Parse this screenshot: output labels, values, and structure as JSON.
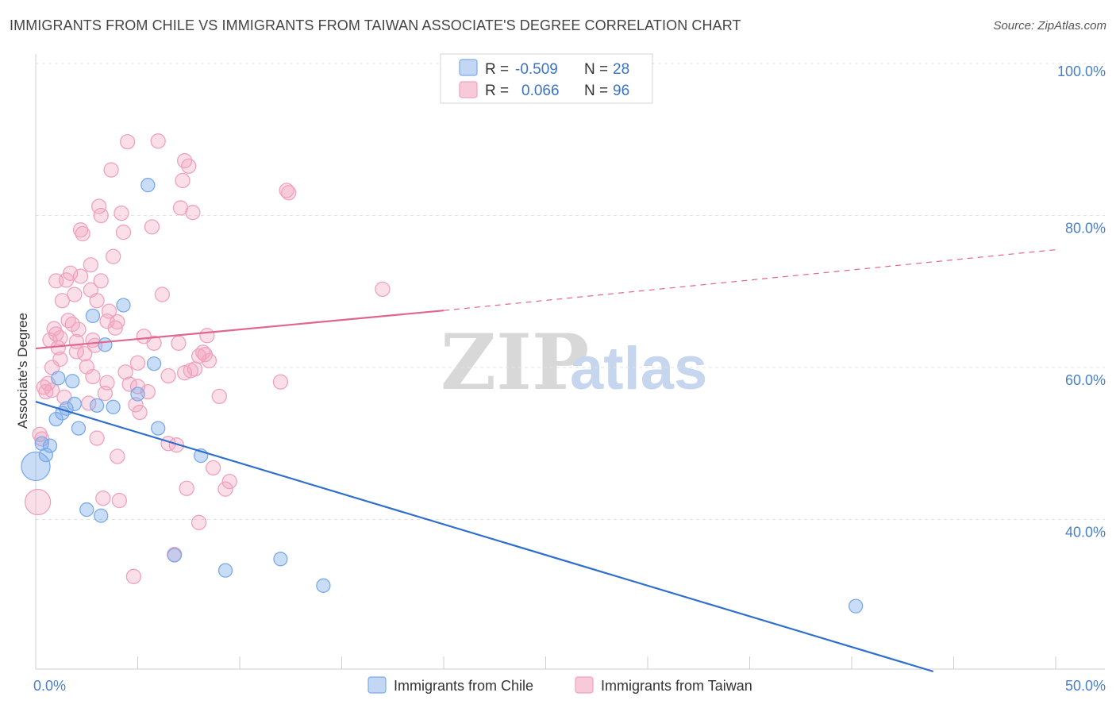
{
  "title": "IMMIGRANTS FROM CHILE VS IMMIGRANTS FROM TAIWAN ASSOCIATE'S DEGREE CORRELATION CHART",
  "source": "Source: ZipAtlas.com",
  "watermark": {
    "zip": "ZIP",
    "atlas": "atlas"
  },
  "colors": {
    "chile": "#7aaaeb",
    "chile_line": "#2f6fcc",
    "taiwan": "#f0a2bd",
    "taiwan_line": "#e0668f",
    "grid": "#e3e3e3",
    "tick_label": "#4a7fc8"
  },
  "legend": {
    "rows": [
      {
        "r_label": "R =",
        "r_value": "-0.509",
        "n_label": "N =",
        "n_value": "28"
      },
      {
        "r_label": "R =",
        "r_value": "0.066",
        "n_label": "N =",
        "n_value": "96"
      }
    ]
  },
  "bottom_legend": [
    "Immigrants from Chile",
    "Immigrants from Taiwan"
  ],
  "chart_data": {
    "type": "scatter",
    "title": "IMMIGRANTS FROM CHILE VS IMMIGRANTS FROM TAIWAN ASSOCIATE'S DEGREE CORRELATION CHART",
    "xlabel": "",
    "ylabel": "Associate's Degree",
    "xlim": [
      0,
      50
    ],
    "ylim": [
      20,
      105
    ],
    "x_tick_labels": [
      "0.0%",
      "50.0%"
    ],
    "y_ticks": [
      40,
      60,
      80,
      100
    ],
    "y_tick_labels": [
      "40.0%",
      "60.0%",
      "80.0%",
      "100.0%"
    ],
    "grid": true,
    "legend_position": "top-center",
    "series": [
      {
        "name": "Immigrants from Chile",
        "points": [
          [
            0.0,
            47.0
          ],
          [
            0.3,
            50.0
          ],
          [
            0.5,
            48.5
          ],
          [
            0.7,
            49.7
          ],
          [
            1.0,
            53.2
          ],
          [
            1.1,
            58.6
          ],
          [
            1.3,
            54.0
          ],
          [
            1.5,
            54.6
          ],
          [
            1.8,
            58.2
          ],
          [
            1.9,
            55.2
          ],
          [
            2.1,
            52.0
          ],
          [
            2.5,
            41.3
          ],
          [
            2.8,
            66.8
          ],
          [
            3.0,
            55.0
          ],
          [
            3.2,
            40.5
          ],
          [
            3.4,
            63.0
          ],
          [
            3.8,
            54.8
          ],
          [
            4.3,
            68.2
          ],
          [
            5.0,
            56.5
          ],
          [
            5.5,
            84.0
          ],
          [
            5.8,
            60.5
          ],
          [
            6.0,
            52.0
          ],
          [
            6.8,
            35.3
          ],
          [
            8.1,
            48.4
          ],
          [
            9.3,
            33.3
          ],
          [
            12.0,
            34.8
          ],
          [
            14.1,
            31.3
          ],
          [
            40.2,
            28.6
          ]
        ],
        "trend": {
          "x": [
            0,
            44
          ],
          "y": [
            55.5,
            20.0
          ]
        }
      },
      {
        "name": "Immigrants from Taiwan",
        "points": [
          [
            0.1,
            42.3
          ],
          [
            0.2,
            51.2
          ],
          [
            0.3,
            50.6
          ],
          [
            0.4,
            57.4
          ],
          [
            0.5,
            56.8
          ],
          [
            0.6,
            57.9
          ],
          [
            0.7,
            63.6
          ],
          [
            0.8,
            60.0
          ],
          [
            0.9,
            65.1
          ],
          [
            1.0,
            71.4
          ],
          [
            1.0,
            64.4
          ],
          [
            1.1,
            62.6
          ],
          [
            1.2,
            63.9
          ],
          [
            1.3,
            68.8
          ],
          [
            1.4,
            56.1
          ],
          [
            1.5,
            71.5
          ],
          [
            1.6,
            66.2
          ],
          [
            1.7,
            72.4
          ],
          [
            1.8,
            65.7
          ],
          [
            1.9,
            69.6
          ],
          [
            2.0,
            62.1
          ],
          [
            2.1,
            65.0
          ],
          [
            2.2,
            78.1
          ],
          [
            2.2,
            72.0
          ],
          [
            2.3,
            77.6
          ],
          [
            2.4,
            61.8
          ],
          [
            2.5,
            60.1
          ],
          [
            2.6,
            55.3
          ],
          [
            2.7,
            73.5
          ],
          [
            2.7,
            70.2
          ],
          [
            2.8,
            58.8
          ],
          [
            2.9,
            62.9
          ],
          [
            3.0,
            50.7
          ],
          [
            3.1,
            81.2
          ],
          [
            3.2,
            71.4
          ],
          [
            3.2,
            80.0
          ],
          [
            3.3,
            42.8
          ],
          [
            3.4,
            56.6
          ],
          [
            3.5,
            66.1
          ],
          [
            3.5,
            58.0
          ],
          [
            3.6,
            67.4
          ],
          [
            3.7,
            86.0
          ],
          [
            3.8,
            74.6
          ],
          [
            3.9,
            65.2
          ],
          [
            4.0,
            48.3
          ],
          [
            4.1,
            42.5
          ],
          [
            4.2,
            80.3
          ],
          [
            4.3,
            77.8
          ],
          [
            4.4,
            59.4
          ],
          [
            4.5,
            89.7
          ],
          [
            4.6,
            57.8
          ],
          [
            4.8,
            32.5
          ],
          [
            4.9,
            55.1
          ],
          [
            5.0,
            57.5
          ],
          [
            5.1,
            54.1
          ],
          [
            5.3,
            64.1
          ],
          [
            5.5,
            56.8
          ],
          [
            5.7,
            78.5
          ],
          [
            5.8,
            63.2
          ],
          [
            6.0,
            89.8
          ],
          [
            6.2,
            69.6
          ],
          [
            6.5,
            50.0
          ],
          [
            6.8,
            35.4
          ],
          [
            6.9,
            49.8
          ],
          [
            7.0,
            63.2
          ],
          [
            7.1,
            81.0
          ],
          [
            7.2,
            84.6
          ],
          [
            7.3,
            87.2
          ],
          [
            7.4,
            44.1
          ],
          [
            7.5,
            86.5
          ],
          [
            7.6,
            59.6
          ],
          [
            7.7,
            80.4
          ],
          [
            7.8,
            59.8
          ],
          [
            8.0,
            39.6
          ],
          [
            8.2,
            62.0
          ],
          [
            8.3,
            61.7
          ],
          [
            8.4,
            64.2
          ],
          [
            8.5,
            60.9
          ],
          [
            8.7,
            46.8
          ],
          [
            9.0,
            56.2
          ],
          [
            9.3,
            44.0
          ],
          [
            9.5,
            45.0
          ],
          [
            12.0,
            58.1
          ],
          [
            12.3,
            83.3
          ],
          [
            12.4,
            83.0
          ],
          [
            17.0,
            70.3
          ],
          [
            0.8,
            57.0
          ],
          [
            1.2,
            61.1
          ],
          [
            2.0,
            63.4
          ],
          [
            3.0,
            68.8
          ],
          [
            4.0,
            66.0
          ],
          [
            5.0,
            60.6
          ],
          [
            6.5,
            58.9
          ],
          [
            7.3,
            59.3
          ],
          [
            8.0,
            61.5
          ],
          [
            2.8,
            63.6
          ]
        ],
        "trend": {
          "x": [
            0,
            20
          ],
          "y": [
            62.5,
            67.5
          ]
        },
        "trend_dashed": {
          "x": [
            20,
            50
          ],
          "y": [
            67.5,
            75.5
          ]
        }
      }
    ]
  }
}
